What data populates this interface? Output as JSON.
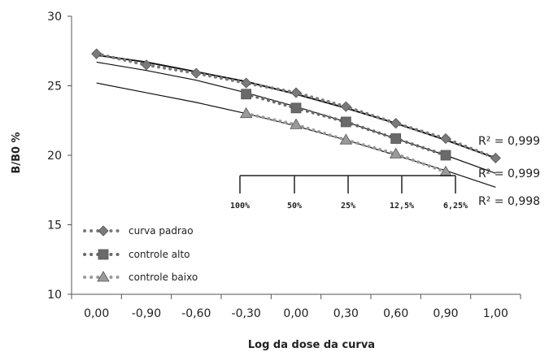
{
  "chart_data": {
    "type": "line",
    "xlabel": "Log da dose da curva",
    "ylabel": "B/B0 %",
    "ylim": [
      10,
      30
    ],
    "yticks": [
      10,
      15,
      20,
      25,
      30
    ],
    "categories": [
      "0,00",
      "-0,90",
      "-0,60",
      "-0,30",
      "0,00",
      "0,30",
      "0,60",
      "0,90",
      "1,00"
    ],
    "series": [
      {
        "name": "curva padrao",
        "color": "#7a7a7a",
        "marker": "diamond",
        "values": [
          27.3,
          26.5,
          25.9,
          25.2,
          24.5,
          23.5,
          22.3,
          21.2,
          19.8
        ],
        "trend": [
          27.2,
          26.7,
          26.0,
          25.3,
          24.4,
          23.4,
          22.3,
          21.1,
          19.8
        ],
        "r2": "R² = 0,999"
      },
      {
        "name": "controle alto",
        "color": "#6a6a6a",
        "marker": "square",
        "values": [
          null,
          null,
          null,
          24.4,
          23.4,
          22.4,
          21.2,
          20.0,
          null
        ],
        "trend": [
          26.7,
          26.1,
          25.4,
          24.5,
          23.5,
          22.4,
          21.2,
          20.0,
          18.7
        ],
        "r2": "R² = 0,999"
      },
      {
        "name": "controle baixo",
        "color": "#9a9a9a",
        "marker": "triangle",
        "values": [
          null,
          null,
          null,
          23.0,
          22.2,
          21.1,
          20.1,
          18.8,
          null
        ],
        "trend": [
          25.2,
          24.5,
          23.8,
          23.0,
          22.1,
          21.1,
          20.0,
          18.9,
          17.7
        ],
        "r2": "R² = 0,998"
      }
    ],
    "scale_labels": [
      "100%",
      "50%",
      "25%",
      "12,5%",
      "6,25%"
    ],
    "legend_position": "bottom-left"
  }
}
